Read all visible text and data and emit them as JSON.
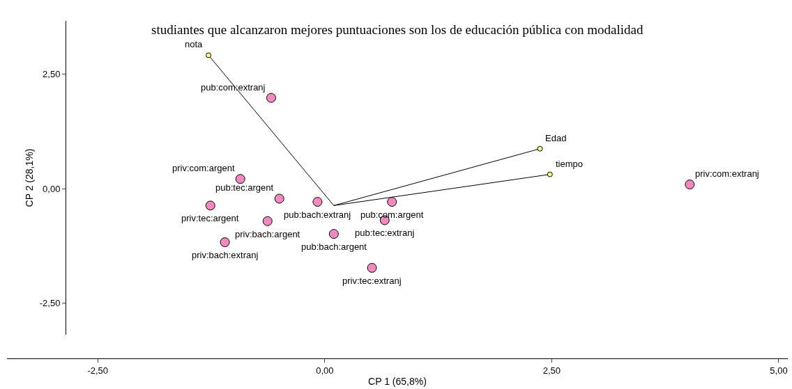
{
  "chart_data": {
    "type": "scatter",
    "xlabel": "CP 1 (65,8%)",
    "ylabel": "CP 2 (28,1%)",
    "xlim": [
      -3.5,
      5.1
    ],
    "ylim": [
      -3.19,
      3.66
    ],
    "xticks": [
      {
        "value": -2.5,
        "label": "-2,50"
      },
      {
        "value": 0,
        "label": "0,00"
      },
      {
        "value": 2.5,
        "label": "2,50"
      },
      {
        "value": 5,
        "label": "5,00"
      }
    ],
    "yticks": [
      {
        "value": -2.5,
        "label": "-2,50"
      },
      {
        "value": 0,
        "label": "0,00"
      },
      {
        "value": 2.5,
        "label": "2,50"
      }
    ],
    "marker": "circle",
    "series": [
      {
        "type": "line",
        "color": "#000000",
        "marker": "none",
        "x": [
          0.1,
          -1.28
        ],
        "values": [
          -0.37,
          2.91
        ]
      },
      {
        "type": "line",
        "color": "#000000",
        "marker": "none",
        "x": [
          0.1,
          2.37
        ],
        "values": [
          -0.37,
          0.87
        ]
      },
      {
        "type": "line",
        "color": "#000000",
        "marker": "none",
        "x": [
          0.1,
          2.48
        ],
        "values": [
          -0.37,
          0.31
        ]
      },
      {
        "color": "#f28ac0",
        "x": [
          -0.59,
          -0.93,
          -0.5,
          -0.08,
          -1.26,
          -0.63,
          -1.1,
          0.1,
          0.66,
          0.74,
          0.52,
          4.02
        ],
        "values": [
          1.98,
          0.21,
          -0.22,
          -0.29,
          -0.37,
          -0.71,
          -1.17,
          -0.99,
          -0.69,
          -0.29,
          -1.73,
          0.09
        ]
      },
      {
        "color": "#ffff80",
        "x": [
          -1.28,
          2.37,
          2.48
        ],
        "values": [
          2.91,
          0.87,
          0.31
        ]
      }
    ],
    "annotations": [
      "studiantes que alcanzaron mejores puntuaciones son los de educación pública con modalidad",
      {
        "text": "pub:com:extranj",
        "x": -0.59,
        "y": 1.98
      },
      {
        "text": "priv:com:argent",
        "x": -0.93,
        "y": 0.21
      },
      {
        "text": "priv:tec:argent",
        "x": -1.26,
        "y": -0.37
      },
      {
        "text": "priv:bach:argent",
        "x": -0.63,
        "y": -0.71
      },
      {
        "text": "priv:bach:extranj",
        "x": -1.1,
        "y": -1.17
      },
      {
        "text": "pub:tec:argent",
        "x": -0.5,
        "y": -0.22
      },
      {
        "text": "pub:bach:extranj",
        "x": -0.08,
        "y": -0.29
      },
      {
        "text": "pub:bach:argent",
        "x": 0.1,
        "y": -0.99
      },
      {
        "text": "pub:tec:extranj",
        "x": 0.66,
        "y": -0.69
      },
      {
        "text": "pub:com:argent",
        "x": 0.74,
        "y": -0.29
      },
      {
        "text": "priv:tec:extranj",
        "x": 0.52,
        "y": -1.73
      },
      {
        "text": "priv:com:extranj",
        "x": 4.02,
        "y": 0.09
      },
      {
        "text": "nota",
        "x": -1.28,
        "y": 2.91
      },
      {
        "text": "Edad",
        "x": 2.37,
        "y": 0.87
      },
      {
        "text": "tiempo",
        "x": 2.48,
        "y": 0.31
      }
    ]
  }
}
